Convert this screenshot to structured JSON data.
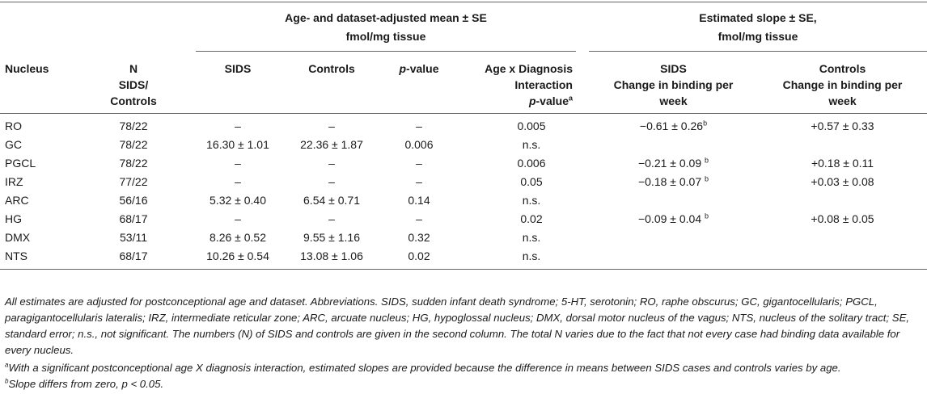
{
  "table": {
    "group_headers": {
      "mean": "Age- and dataset-adjusted mean ± SE",
      "mean_unit": "fmol/mg tissue",
      "slope": "Estimated slope ± SE,",
      "slope_unit": "fmol/mg tissue"
    },
    "columns": {
      "nucleus": "Nucleus",
      "n_line1": "N",
      "n_line2": "SIDS/",
      "n_line3": "Controls",
      "sids": "SIDS",
      "controls": "Controls",
      "pvalue_p": "p",
      "pvalue_rest": "-value",
      "interaction_line1": "Age x Diagnosis",
      "interaction_line2": "Interaction",
      "interaction_p": "p",
      "interaction_rest": "-value",
      "interaction_sup": "a",
      "slope_sids_line1": "SIDS",
      "slope_sids_line2": "Change in binding per",
      "slope_sids_line3": "week",
      "slope_ctrl_line1": "Controls",
      "slope_ctrl_line2": "Change in binding per",
      "slope_ctrl_line3": "week"
    },
    "rows": [
      {
        "nucleus": "RO",
        "n": "78/22",
        "sids": "–",
        "controls": "–",
        "p": "–",
        "interaction": "0.005",
        "slope_sids": "−0.61 ± 0.26",
        "slope_sids_sup": "b",
        "slope_ctrl": "+0.57 ± 0.33"
      },
      {
        "nucleus": "GC",
        "n": "78/22",
        "sids": "16.30 ± 1.01",
        "controls": "22.36 ± 1.87",
        "p": "0.006",
        "interaction": "n.s.",
        "slope_sids": "",
        "slope_sids_sup": "",
        "slope_ctrl": ""
      },
      {
        "nucleus": "PGCL",
        "n": "78/22",
        "sids": "–",
        "controls": "–",
        "p": "–",
        "interaction": "0.006",
        "slope_sids": "−0.21 ± 0.09 ",
        "slope_sids_sup": "b",
        "slope_ctrl": "+0.18 ± 0.11"
      },
      {
        "nucleus": "IRZ",
        "n": "77/22",
        "sids": "–",
        "controls": "–",
        "p": "–",
        "interaction": "0.05",
        "slope_sids": "−0.18 ± 0.07 ",
        "slope_sids_sup": "b",
        "slope_ctrl": "+0.03 ± 0.08"
      },
      {
        "nucleus": "ARC",
        "n": "56/16",
        "sids": "5.32 ± 0.40",
        "controls": "6.54 ± 0.71",
        "p": "0.14",
        "interaction": "n.s.",
        "slope_sids": "",
        "slope_sids_sup": "",
        "slope_ctrl": ""
      },
      {
        "nucleus": "HG",
        "n": "68/17",
        "sids": "–",
        "controls": "–",
        "p": "–",
        "interaction": "0.02",
        "slope_sids": "−0.09 ± 0.04 ",
        "slope_sids_sup": "b",
        "slope_ctrl": "+0.08 ± 0.05"
      },
      {
        "nucleus": "DMX",
        "n": "53/11",
        "sids": "8.26 ± 0.52",
        "controls": "9.55 ± 1.16",
        "p": "0.32",
        "interaction": "n.s.",
        "slope_sids": "",
        "slope_sids_sup": "",
        "slope_ctrl": ""
      },
      {
        "nucleus": "NTS",
        "n": "68/17",
        "sids": "10.26 ± 0.54",
        "controls": "13.08 ± 1.06",
        "p": "0.02",
        "interaction": "n.s.",
        "slope_sids": "",
        "slope_sids_sup": "",
        "slope_ctrl": ""
      }
    ]
  },
  "footnotes": {
    "main": "All estimates are adjusted for postconceptional age and dataset. Abbreviations. SIDS, sudden infant death syndrome; 5-HT, serotonin; RO, raphe obscurus; GC, gigantocellularis; PGCL, paragigantocellularis lateralis; IRZ, intermediate reticular zone; ARC, arcuate nucleus; HG, hypoglossal nucleus; DMX, dorsal motor nucleus of the vagus; NTS, nucleus of the solitary tract; SE, standard error; n.s., not significant. The numbers (N) of SIDS and controls are given in the second column. The total N varies due to the fact that not every case had binding data available for every nucleus.",
    "a_mark": "a",
    "a_text": "With a significant postconceptional age X diagnosis interaction, estimated slopes are provided because the difference in means between SIDS cases and controls varies by age.",
    "b_mark": "b",
    "b_text": "Slope differs from zero, p < 0.05."
  }
}
